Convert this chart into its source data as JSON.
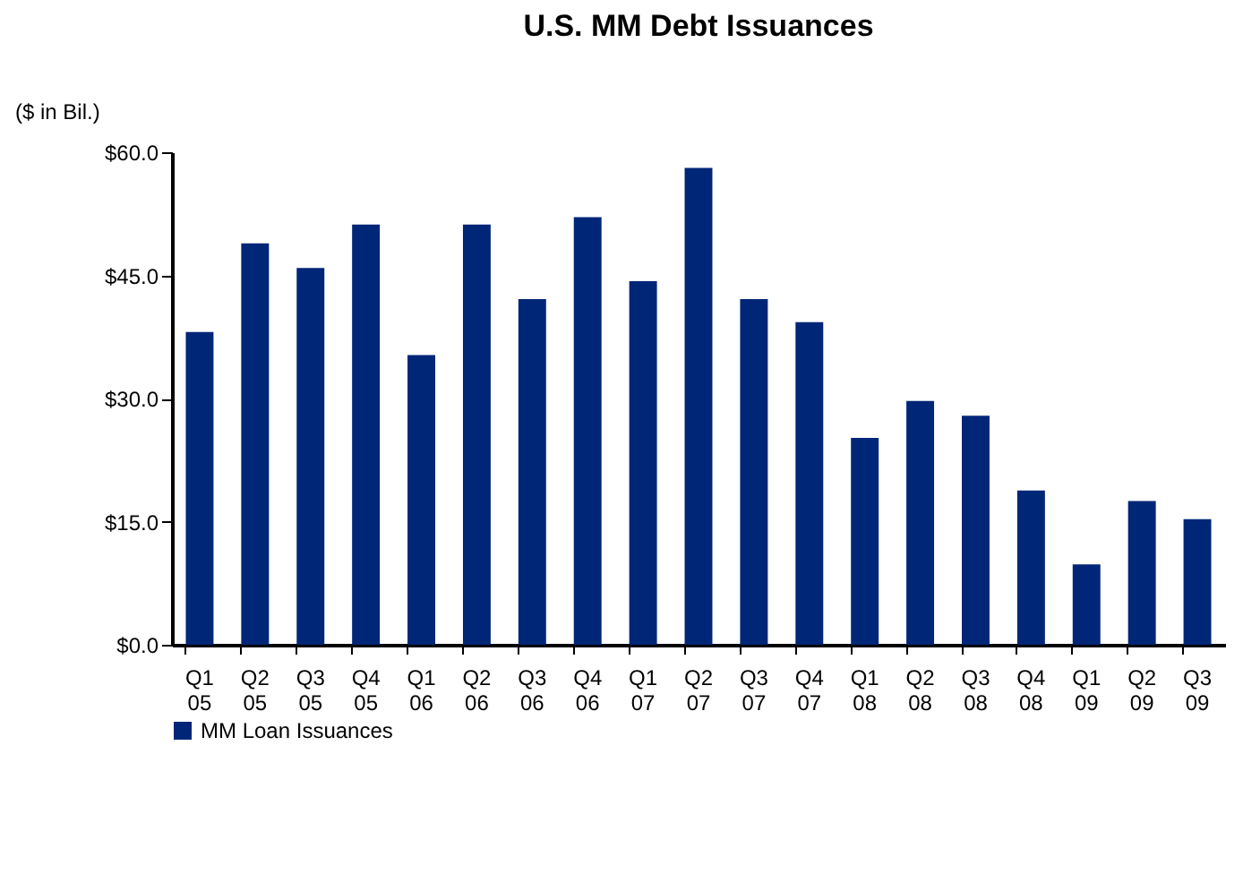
{
  "chart_data": {
    "type": "bar",
    "title": "U.S. MM Debt Issuances",
    "ylabel": "($ in Bil.)",
    "categories": [
      "Q1 05",
      "Q2 05",
      "Q3 05",
      "Q4 05",
      "Q1 06",
      "Q2 06",
      "Q3 06",
      "Q4 06",
      "Q1 07",
      "Q2 07",
      "Q3 07",
      "Q4 07",
      "Q1 08",
      "Q2 08",
      "Q3 08",
      "Q4 08",
      "Q1 09",
      "Q2 09",
      "Q3 09"
    ],
    "series": [
      {
        "name": "MM Loan Issuances",
        "color": "#002677",
        "values": [
          38.1,
          48.9,
          45.9,
          51.2,
          35.3,
          51.2,
          42.1,
          52.1,
          44.3,
          58.1,
          42.1,
          39.3,
          25.2,
          29.7,
          27.9,
          18.8,
          9.8,
          17.5,
          15.3
        ]
      }
    ],
    "ylim": [
      0,
      60
    ],
    "yticks": [
      {
        "value": 0,
        "label": "$0.0"
      },
      {
        "value": 15,
        "label": "$15.0"
      },
      {
        "value": 30,
        "label": "$30.0"
      },
      {
        "value": 45,
        "label": "$45.0"
      },
      {
        "value": 60,
        "label": "$60.0"
      }
    ],
    "grid": false,
    "legend": "bottom"
  }
}
